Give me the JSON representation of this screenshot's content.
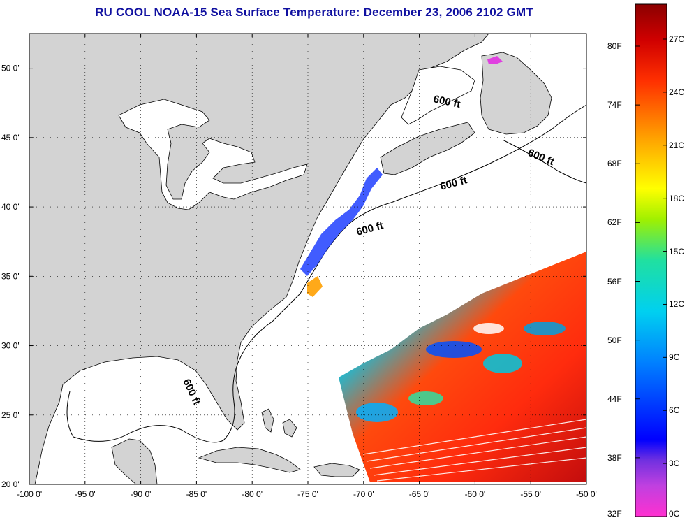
{
  "title": "RU COOL  NOAA-15  Sea Surface Temperature:  December 23, 2006 2102 GMT",
  "map": {
    "lon_range": [
      -100,
      -50
    ],
    "lat_range": [
      20,
      52.5
    ],
    "x_ticks": [
      "-100 0'",
      "-95 0'",
      "-90 0'",
      "-85 0'",
      "-80 0'",
      "-75 0'",
      "-70 0'",
      "-65 0'",
      "-60 0'",
      "-55 0'",
      "-50 0'"
    ],
    "y_ticks": [
      "50 0'",
      "45 0'",
      "40 0'",
      "35 0'",
      "30 0'",
      "25 0'",
      "20 0'"
    ],
    "grid": "dotted",
    "land_color": "#d3d3d3",
    "contour_labels": [
      "600 ft",
      "600 ft",
      "600 ft",
      "600 ft",
      "600 ft"
    ]
  },
  "colorbar": {
    "fahrenheit_labels": [
      "80F",
      "74F",
      "68F",
      "62F",
      "56F",
      "50F",
      "44F",
      "38F",
      "32F"
    ],
    "celsius_labels": [
      "27C",
      "24C",
      "21C",
      "18C",
      "15C",
      "12C",
      "9C",
      "6C",
      "3C",
      "0C"
    ],
    "colors": [
      "#ff30d0",
      "#8a2be2",
      "#0000ff",
      "#00a0ff",
      "#00e0e0",
      "#40e080",
      "#ffff00",
      "#ffa000",
      "#ff2000",
      "#8b0000"
    ]
  }
}
